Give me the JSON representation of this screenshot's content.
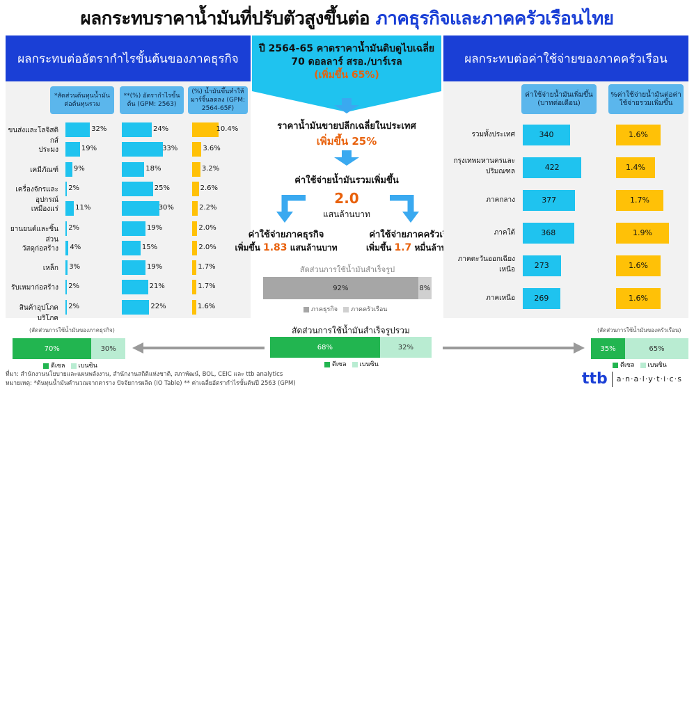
{
  "title": {
    "main": "ผลกระทบราคาน้ำมันที่ปรับตัวสูงขึ้นต่อ ",
    "highlight": "ภาคธุรกิจและภาคครัวเรือนไทย"
  },
  "left": {
    "header": "ผลกระทบต่ออัตรากำไรขั้นต้นของภาคธุรกิจ",
    "col1": "*สัดส่วนต้นทุนน้ำมันต่อต้นทุนรวม",
    "col2": "**(%) อัตรากำไรขั้นต้น (GPM: 2563)",
    "col3": "(%) น้ำมันขึ้นทำให้มาร์จิ้นลดลง (GPM: 2564-65F)",
    "rows": [
      {
        "label": "ขนส่งและโลจิสติกส์",
        "cost": 32,
        "gpm": 24,
        "drop": 10.4
      },
      {
        "label": "ประมง",
        "cost": 19,
        "gpm": 33,
        "drop": 3.6
      },
      {
        "label": "เคมีภัณฑ์",
        "cost": 9,
        "gpm": 18,
        "drop": 3.2
      },
      {
        "label": "เครื่องจักรและอุปกรณ์",
        "cost": 2,
        "gpm": 25,
        "drop": 2.6
      },
      {
        "label": "เหมืองแร่",
        "cost": 11,
        "gpm": 30,
        "drop": 2.2
      },
      {
        "label": "ยานยนต์และชิ้นส่วน",
        "cost": 2,
        "gpm": 19,
        "drop": 2.0
      },
      {
        "label": "วัสดุก่อสร้าง",
        "cost": 4,
        "gpm": 15,
        "drop": 2.0
      },
      {
        "label": "เหล็ก",
        "cost": 3,
        "gpm": 19,
        "drop": 1.7
      },
      {
        "label": "รับเหมาก่อสร้าง",
        "cost": 2,
        "gpm": 21,
        "drop": 1.7
      },
      {
        "label": "สินค้าอุปโภคบริโภค",
        "cost": 2,
        "gpm": 22,
        "drop": 1.6
      }
    ],
    "stack_caption": "(สัดส่วนการใช้น้ำมันของภาคธุรกิจ)",
    "stack": {
      "diesel": "70%",
      "benzin": "30%",
      "diesel_val": 70,
      "benzin_val": 30
    }
  },
  "center": {
    "box_line1": "ปี 2564-65 คาดราคาน้ำมันดิบดูไบเฉลี่ย",
    "box_line2": "70 ดอลลาร์ สรอ./บาร์เรล",
    "box_line3": "(เพิ่มขึ้น 65%)",
    "retail_line1": "ราคาน้ำมันขายปลีกเฉลี่ยในประเทศ",
    "retail_line2": "เพิ่มขึ้น 25%",
    "total_line1": "ค่าใช้จ่ายน้ำมันรวมเพิ่มขึ้น",
    "total_value": "2.0",
    "total_unit": "แสนล้านบาท",
    "biz_line1": "ค่าใช้จ่ายภาคธุรกิจ",
    "biz_prefix": "เพิ่มขึ้น ",
    "biz_value": "1.83",
    "biz_unit": " แสนล้านบาท",
    "hh_line1": "ค่าใช้จ่ายภาคครัวเรือน",
    "hh_prefix": "เพิ่มขึ้น ",
    "hh_value": "1.7",
    "hh_unit": " หมื่นล้านบาท",
    "share_title": "สัดส่วนการใช้น้ำมันสำเร็จรูป",
    "share": {
      "biz": "92%",
      "hh": "8%",
      "biz_val": 92,
      "hh_val": 8
    },
    "share_legend": {
      "biz": "ภาคธุรกิจ",
      "hh": "ภาคครัวเรือน"
    },
    "stack_title": "สัดส่วนการใช้น้ำมันสำเร็จรูปรวม",
    "stack": {
      "diesel": "68%",
      "benzin": "32%",
      "diesel_val": 68,
      "benzin_val": 32
    }
  },
  "right": {
    "header": "ผลกระทบต่อค่าใช้จ่ายของภาคครัวเรือน",
    "col1": "ค่าใช้จ่ายน้ำมันเพิ่มขึ้น (บาทต่อเดือน)",
    "col2": "%ค่าใช้จ่ายน้ำมันต่อค่าใช้จ่ายรวมเพิ่มขึ้น",
    "rows": [
      {
        "label": "รวมทั้งประเทศ",
        "baht": 340,
        "pct": "1.6%",
        "pct_val": 1.6
      },
      {
        "label": "กรุงเทพมหานครและปริมณฑล",
        "baht": 422,
        "pct": "1.4%",
        "pct_val": 1.4
      },
      {
        "label": "ภาคกลาง",
        "baht": 377,
        "pct": "1.7%",
        "pct_val": 1.7
      },
      {
        "label": "ภาคใต้",
        "baht": 368,
        "pct": "1.9%",
        "pct_val": 1.9
      },
      {
        "label": "ภาคตะวันออกเฉียงเหนือ",
        "baht": 273,
        "pct": "1.6%",
        "pct_val": 1.6
      },
      {
        "label": "ภาคเหนือ",
        "baht": 269,
        "pct": "1.6%",
        "pct_val": 1.6
      }
    ],
    "stack_caption": "(สัดส่วนการใช้น้ำมันของครัวเรือน)",
    "stack": {
      "diesel": "35%",
      "benzin": "65%",
      "diesel_val": 35,
      "benzin_val": 65
    }
  },
  "legend": {
    "diesel": "ดีเซล",
    "benzin": "เบนซิน"
  },
  "footer": {
    "source": "ที่มา: สำนักงานนโยบายและแผนพลังงาน, สำนักงานสถิติแห่งชาติ, สภาพัฒน์, BOL, CEIC และ ttb analytics",
    "note": "หมายเหตุ: *ต้นทุนน้ำมันคำนวณจากตาราง ปัจจัยการผลิต (IO Table) ** ค่าเฉลี่ยอัตรากำไรขั้นต้นปี 2563 (GPM)"
  },
  "logo": {
    "brand": "ttb",
    "text": "a·n·a·l·y·t·i·c·s"
  },
  "colors": {
    "blue": "#1a3fd6",
    "cyan": "#1fc3ef",
    "yellow": "#ffc107",
    "diesel": "#22b550",
    "benzin": "#b9ecd2",
    "orange": "#e8610c"
  },
  "chart_data": [
    {
      "type": "bar",
      "title": "ผลกระทบต่ออัตรากำไรขั้นต้นของภาคธุรกิจ",
      "categories": [
        "ขนส่งและโลจิสติกส์",
        "ประมง",
        "เคมีภัณฑ์",
        "เครื่องจักรและอุปกรณ์",
        "เหมืองแร่",
        "ยานยนต์และชิ้นส่วน",
        "วัสดุก่อสร้าง",
        "เหล็ก",
        "รับเหมาก่อสร้าง",
        "สินค้าอุปโภคบริโภค"
      ],
      "series": [
        {
          "name": "*สัดส่วนต้นทุนน้ำมันต่อต้นทุนรวม",
          "values": [
            32,
            19,
            9,
            2,
            11,
            2,
            4,
            3,
            2,
            2
          ]
        },
        {
          "name": "**(%) อัตรากำไรขั้นต้น (GPM: 2563)",
          "values": [
            24,
            33,
            18,
            25,
            30,
            19,
            15,
            19,
            21,
            22
          ]
        },
        {
          "name": "(%) น้ำมันขึ้นทำให้มาร์จิ้นลดลง (GPM: 2564-65F)",
          "values": [
            10.4,
            3.6,
            3.2,
            2.6,
            2.2,
            2.0,
            2.0,
            1.7,
            1.7,
            1.6
          ]
        }
      ]
    },
    {
      "type": "bar",
      "title": "ผลกระทบต่อค่าใช้จ่ายของภาคครัวเรือน",
      "categories": [
        "รวมทั้งประเทศ",
        "กรุงเทพมหานครและปริมณฑล",
        "ภาคกลาง",
        "ภาคใต้",
        "ภาคตะวันออกเฉียงเหนือ",
        "ภาคเหนือ"
      ],
      "series": [
        {
          "name": "ค่าใช้จ่ายน้ำมันเพิ่มขึ้น (บาทต่อเดือน)",
          "values": [
            340,
            422,
            377,
            368,
            273,
            269
          ]
        },
        {
          "name": "%ค่าใช้จ่ายน้ำมันต่อค่าใช้จ่ายรวมเพิ่มขึ้น",
          "values": [
            1.6,
            1.4,
            1.7,
            1.9,
            1.6,
            1.6
          ]
        }
      ]
    },
    {
      "type": "bar",
      "title": "สัดส่วนการใช้น้ำมันสำเร็จรูป",
      "categories": [
        "ภาคธุรกิจ",
        "ภาคครัวเรือน"
      ],
      "values": [
        92,
        8
      ]
    },
    {
      "type": "bar",
      "title": "สัดส่วนการใช้น้ำมันสำเร็จรูปรวม",
      "categories": [
        "ดีเซล",
        "เบนซิน"
      ],
      "values": [
        68,
        32
      ]
    }
  ]
}
